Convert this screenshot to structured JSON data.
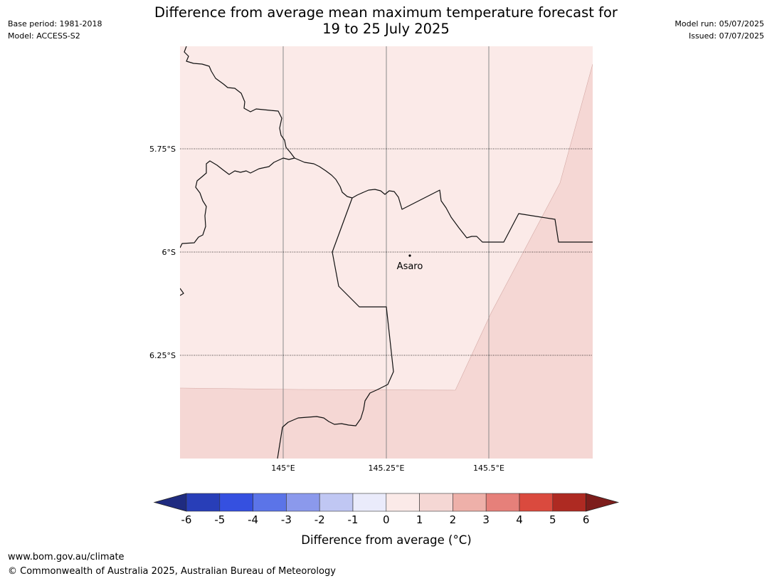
{
  "header": {
    "title_line1": "Difference from average mean maximum temperature forecast for",
    "title_line2": "19 to 25 July 2025",
    "base_period": "Base period: 1981-2018",
    "model": "Model: ACCESS-S2",
    "model_run": "Model run: 05/07/2025",
    "issued": "Issued: 07/07/2025"
  },
  "map": {
    "place_label": "Asaro",
    "lat_labels": [
      "5.75°S",
      "6°S",
      "6.25°S"
    ],
    "lon_labels": [
      "145°E",
      "145.25°E",
      "145.5°E"
    ],
    "fill_colors": {
      "band_0_1": "#fbeae8",
      "band_1_2": "#f5d7d4"
    }
  },
  "colorbar": {
    "ticks": [
      "-6",
      "-5",
      "-4",
      "-3",
      "-2",
      "-1",
      "0",
      "1",
      "2",
      "3",
      "4",
      "5",
      "6"
    ],
    "colors": [
      "#1f2b80",
      "#283eb8",
      "#3550e0",
      "#5b74e8",
      "#8b99ec",
      "#c0c7f3",
      "#eaebfb",
      "#fbeae8",
      "#f5d7d4",
      "#eeb0a9",
      "#e6807a",
      "#da4a3e",
      "#ae2a22",
      "#7d1d1b"
    ],
    "label": "Difference from average (°C)"
  },
  "footer": {
    "url": "www.bom.gov.au/climate",
    "copyright": "© Commonwealth of Australia 2025, Australian Bureau of Meteorology"
  }
}
